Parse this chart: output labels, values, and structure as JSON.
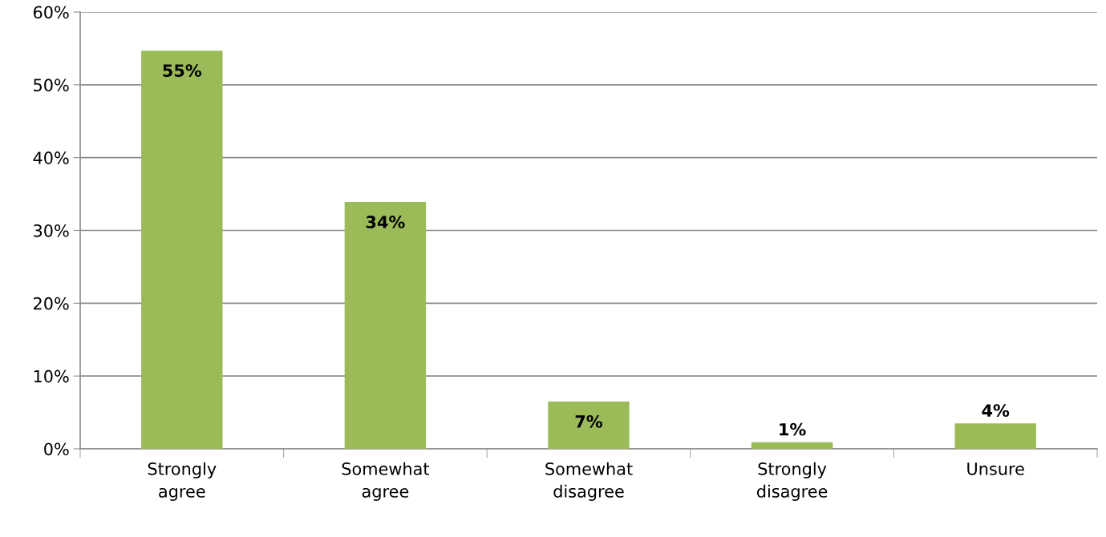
{
  "chart_data": {
    "type": "bar",
    "categories": [
      "Strongly agree",
      "Somewhat agree",
      "Somewhat disagree",
      "Strongly disagree",
      "Unsure"
    ],
    "values": [
      54.7,
      33.9,
      6.5,
      0.9,
      3.5
    ],
    "value_labels": [
      "55%",
      "34%",
      "7%",
      "1%",
      "4%"
    ],
    "color": "#9bbb59",
    "ylim": [
      0,
      60
    ],
    "yticks": [
      {
        "value": 0,
        "label": "0%"
      },
      {
        "value": 10,
        "label": "10%"
      },
      {
        "value": 20,
        "label": "20%"
      },
      {
        "value": 30,
        "label": "30%"
      },
      {
        "value": 40,
        "label": "40%"
      },
      {
        "value": 50,
        "label": "50%"
      },
      {
        "value": 60,
        "label": "60%"
      }
    ],
    "grid": "y"
  }
}
